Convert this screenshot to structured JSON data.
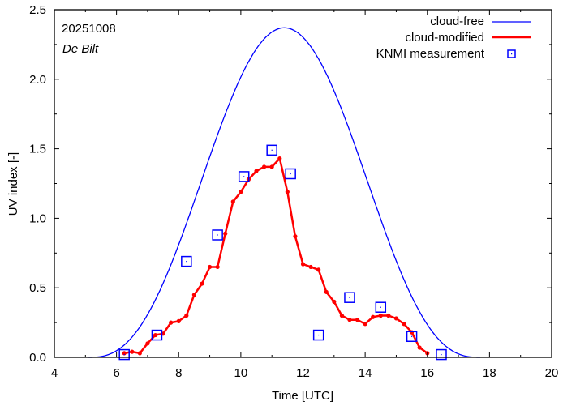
{
  "chart_data": {
    "type": "line",
    "title": "",
    "date_label": "20251008",
    "station_label": "De Bilt",
    "xlabel": "Time  [UTC]",
    "ylabel": "UV index  [-]",
    "xlim": [
      4,
      20
    ],
    "ylim": [
      0,
      2.5
    ],
    "xticks": [
      4,
      6,
      8,
      10,
      12,
      14,
      16,
      18,
      20
    ],
    "xtick_labels": [
      "4",
      "6",
      "8",
      "10",
      "12",
      "14",
      "16",
      "18",
      "20"
    ],
    "yticks": [
      0,
      0.5,
      1.0,
      1.5,
      2.0,
      2.5
    ],
    "ytick_labels": [
      "0.0",
      "0.5",
      "1.0",
      "1.5",
      "2.0",
      "2.5"
    ],
    "legend_position": "top-right",
    "grid": false,
    "series": [
      {
        "name": "cloud-free",
        "color": "#0000ff",
        "style": "line",
        "peak_time": 11.4,
        "peak_value": 2.37,
        "start_time": 5.1,
        "end_time": 17.7
      },
      {
        "name": "cloud-modified",
        "color": "#ff0000",
        "style": "line-points",
        "x": [
          6.25,
          6.5,
          6.75,
          7.0,
          7.25,
          7.5,
          7.75,
          8.0,
          8.25,
          8.5,
          8.75,
          9.0,
          9.25,
          9.5,
          9.75,
          10.0,
          10.25,
          10.5,
          10.75,
          11.0,
          11.25,
          11.5,
          11.75,
          12.0,
          12.25,
          12.5,
          12.75,
          13.0,
          13.25,
          13.5,
          13.75,
          14.0,
          14.25,
          14.5,
          14.75,
          15.0,
          15.25,
          15.5,
          15.75,
          16.0
        ],
        "y": [
          0.03,
          0.04,
          0.03,
          0.1,
          0.16,
          0.17,
          0.25,
          0.26,
          0.3,
          0.45,
          0.53,
          0.65,
          0.65,
          0.89,
          1.12,
          1.19,
          1.28,
          1.34,
          1.37,
          1.37,
          1.43,
          1.19,
          0.87,
          0.67,
          0.65,
          0.63,
          0.47,
          0.4,
          0.3,
          0.27,
          0.27,
          0.24,
          0.29,
          0.3,
          0.3,
          0.28,
          0.24,
          0.18,
          0.07,
          0.03
        ]
      },
      {
        "name": "KNMI measurement",
        "color": "#0000ff",
        "style": "square-markers",
        "x": [
          6.25,
          7.3,
          8.25,
          9.25,
          10.1,
          11.0,
          11.6,
          12.5,
          13.5,
          14.5,
          15.5,
          16.45
        ],
        "y": [
          0.02,
          0.16,
          0.69,
          0.88,
          1.3,
          1.49,
          1.32,
          0.16,
          0.43,
          0.36,
          0.15,
          0.02
        ]
      }
    ]
  }
}
